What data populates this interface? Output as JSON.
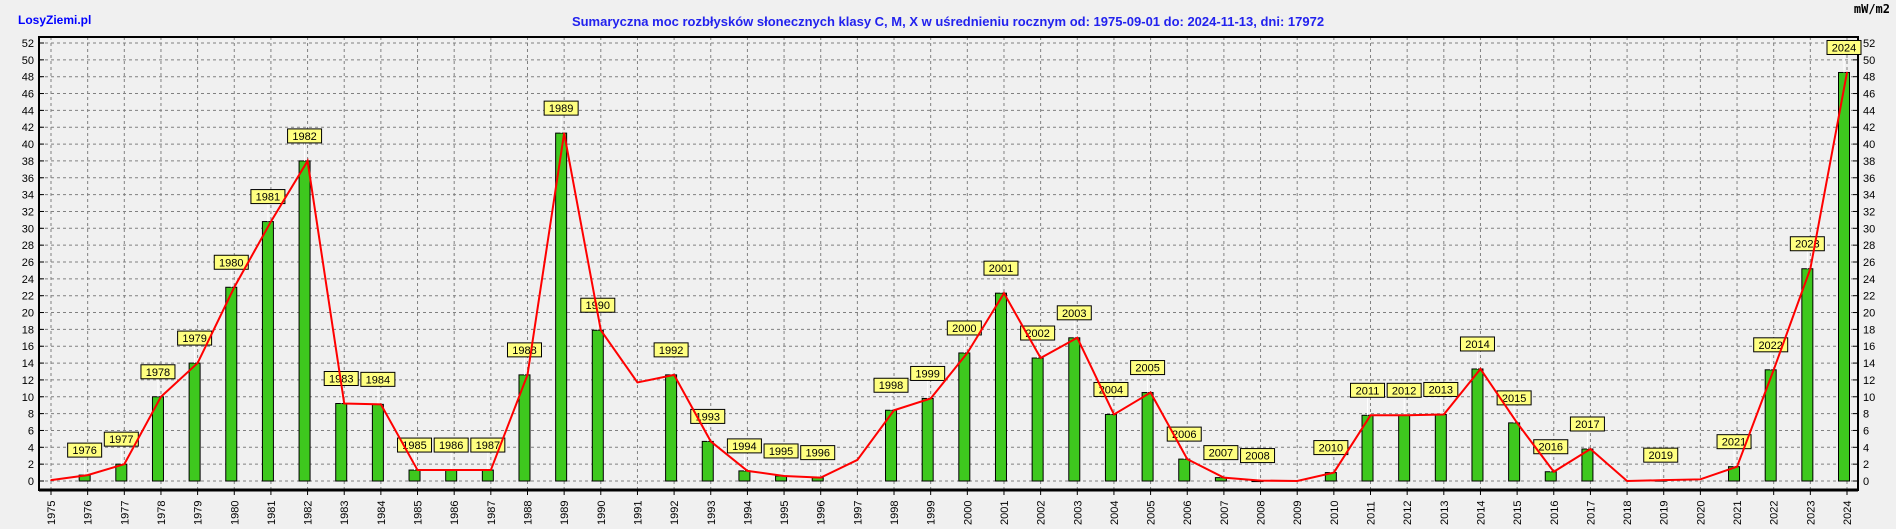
{
  "brand": "LosyZiemi.pl",
  "chart_data": {
    "type": "bar",
    "title": "Sumaryczna moc rozbłysków słonecznych klasy C, M, X w uśrednieniu rocznym od: 1975-09-01 do: 2024-11-13, dni: 17972",
    "ylabel": "mW/m2",
    "xlabel": "",
    "ylim": [
      0,
      52
    ],
    "yticks": [
      0,
      2,
      4,
      6,
      8,
      10,
      12,
      14,
      16,
      18,
      20,
      22,
      24,
      26,
      28,
      30,
      32,
      34,
      36,
      38,
      40,
      42,
      44,
      46,
      48,
      50,
      52
    ],
    "grid": true,
    "categories": [
      "1975",
      "1976",
      "1977",
      "1978",
      "1979",
      "1980",
      "1981",
      "1982",
      "1983",
      "1984",
      "1985",
      "1986",
      "1987",
      "1988",
      "1989",
      "1990",
      "1991",
      "1992",
      "1993",
      "1994",
      "1995",
      "1996",
      "1997",
      "1998",
      "1999",
      "2000",
      "2001",
      "2002",
      "2003",
      "2004",
      "2005",
      "2006",
      "2007",
      "2008",
      "2009",
      "2010",
      "2011",
      "2012",
      "2013",
      "2014",
      "2015",
      "2016",
      "2017",
      "2018",
      "2019",
      "2020",
      "2021",
      "2022",
      "2023",
      "2024"
    ],
    "series": [
      {
        "name": "bars",
        "color": "#3ec81e",
        "values": [
          null,
          0.7,
          2.0,
          10.0,
          14.0,
          23.0,
          30.8,
          38.0,
          9.2,
          9.1,
          1.3,
          1.3,
          1.3,
          12.6,
          41.3,
          17.9,
          null,
          12.6,
          4.7,
          1.2,
          0.6,
          0.4,
          null,
          8.4,
          9.8,
          15.2,
          22.3,
          14.6,
          17.0,
          7.9,
          10.5,
          2.6,
          0.4,
          0.05,
          null,
          1.0,
          7.8,
          7.8,
          7.9,
          13.3,
          6.9,
          1.1,
          3.8,
          null,
          0.1,
          null,
          1.7,
          13.2,
          25.2,
          48.5
        ]
      },
      {
        "name": "line",
        "color": "#ff0000",
        "values": [
          0.1,
          0.7,
          2.0,
          10.0,
          14.0,
          23.0,
          30.8,
          38.0,
          9.2,
          9.1,
          1.3,
          1.3,
          1.3,
          12.6,
          41.3,
          17.9,
          11.7,
          12.6,
          4.7,
          1.2,
          0.6,
          0.4,
          2.5,
          8.4,
          9.8,
          15.2,
          22.3,
          14.6,
          17.0,
          7.9,
          10.5,
          2.6,
          0.4,
          0.05,
          0.0,
          1.0,
          7.8,
          7.8,
          7.9,
          13.3,
          6.9,
          1.1,
          3.8,
          0.0,
          0.1,
          0.2,
          1.7,
          13.2,
          25.2,
          48.5
        ]
      }
    ],
    "label_color": "#ffff80"
  }
}
